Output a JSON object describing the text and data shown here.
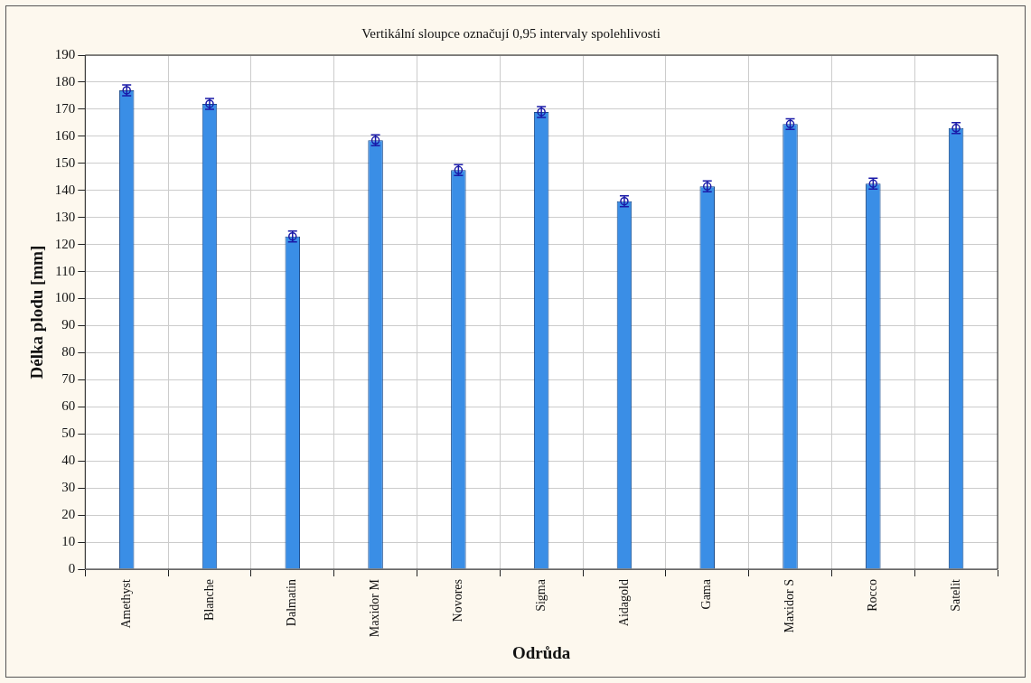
{
  "chart_data": {
    "type": "bar",
    "title": "Vertikální sloupce označují 0,95 intervaly spolehlivosti",
    "xlabel": "Odrůda",
    "ylabel": "Délka plodu [mm]",
    "categories": [
      "Amethyst",
      "Blanche",
      "Dalmatin",
      "Maxidor M",
      "Novores",
      "Sigma",
      "Aidagold",
      "Gama",
      "Maxidor S",
      "Rocco",
      "Satelit"
    ],
    "series": [
      {
        "type": "bar",
        "color": "#3a8ee6",
        "values": [
          177,
          172,
          123,
          158.5,
          147.5,
          169,
          136,
          141.5,
          164.5,
          142.5,
          163
        ]
      },
      {
        "type": "scatter",
        "color": "#1a1aa8",
        "marker": "circle",
        "x": [
          "Amethyst",
          "Blanche",
          "Dalmatin",
          "Maxidor M",
          "Novores",
          "Sigma",
          "Aidagold",
          "Gama",
          "Maxidor S",
          "Rocco",
          "Satelit"
        ],
        "values": [
          177,
          172,
          123,
          158.5,
          147.5,
          169,
          136,
          141.5,
          164.5,
          142.5,
          163
        ],
        "errors": [
          2,
          2,
          2,
          2,
          2,
          2,
          2,
          2,
          2,
          2,
          2
        ]
      }
    ],
    "ylim": [
      0,
      190
    ],
    "yticks": [
      0,
      10,
      20,
      30,
      40,
      50,
      60,
      70,
      80,
      90,
      100,
      110,
      120,
      130,
      140,
      150,
      160,
      170,
      180,
      190
    ],
    "grid": true
  }
}
